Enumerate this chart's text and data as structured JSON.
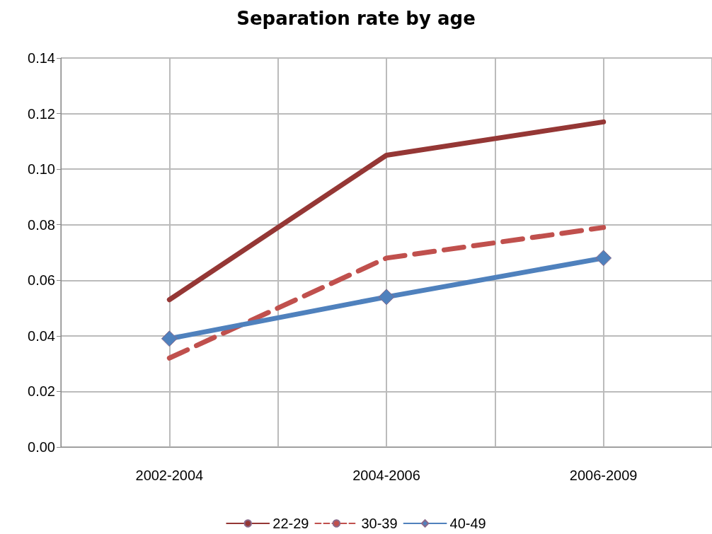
{
  "chart_data": {
    "type": "line",
    "title": "Separation rate by age",
    "categories": [
      "2002-2004",
      "2004-2006",
      "2006-2009"
    ],
    "series": [
      {
        "name": "22-29",
        "color": "#953735",
        "values": [
          0.053,
          0.105,
          0.117
        ],
        "line_style": "solid",
        "marker": "none"
      },
      {
        "name": "30-39",
        "color": "#c0504d",
        "values": [
          0.032,
          0.068,
          0.079
        ],
        "line_style": "dashed",
        "marker": "none"
      },
      {
        "name": "40-49",
        "color": "#4f81bd",
        "values": [
          0.039,
          0.054,
          0.068
        ],
        "line_style": "solid",
        "marker": "diamond"
      }
    ],
    "ylim": [
      0,
      0.14
    ],
    "yticks": [
      {
        "value": 0,
        "label": "0.00"
      },
      {
        "value": 0.02,
        "label": "0.02"
      },
      {
        "value": 0.04,
        "label": "0.04"
      },
      {
        "value": 0.06,
        "label": "0.06"
      },
      {
        "value": 0.08,
        "label": "0.08"
      },
      {
        "value": 0.1,
        "label": "0.10"
      },
      {
        "value": 0.12,
        "label": "0.12"
      },
      {
        "value": 0.14,
        "label": "0.14"
      }
    ],
    "grid": true,
    "legend": "bottom"
  }
}
